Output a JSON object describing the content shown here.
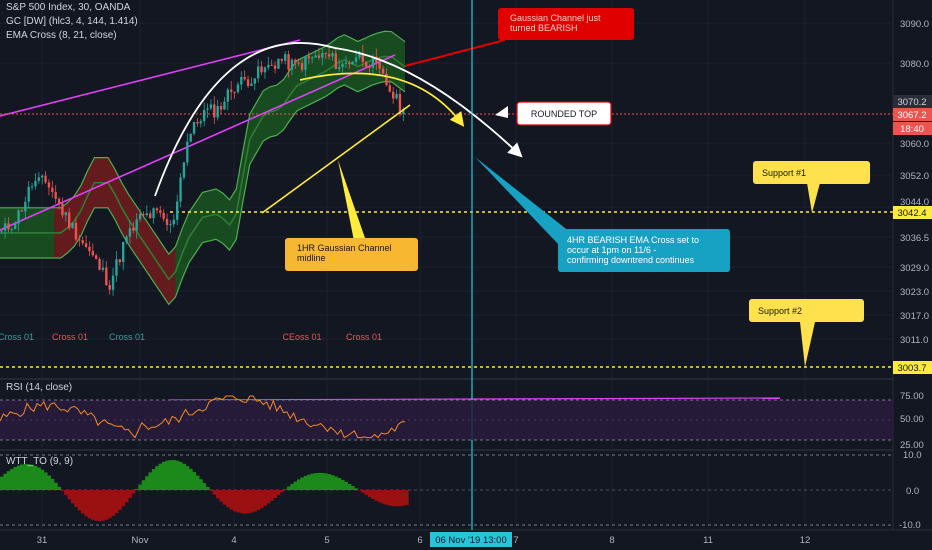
{
  "legend": {
    "main": "S&P 500 Index, 30, OANDA",
    "gc": "GC [DW] (hlc3, 4, 144, 1.414)",
    "ema": "EMA Cross (8, 21, close)",
    "rsi": "RSI (14, close)",
    "wtt": "WTT_TO (9, 9)"
  },
  "price_axis": [
    "3090.0",
    "3080.0",
    "3060.0",
    "3052.0",
    "3044.0",
    "3036.5",
    "3029.0",
    "3023.0",
    "3017.0",
    "3011.0"
  ],
  "price_tags": {
    "last": "3070.2",
    "current": "3067.2",
    "countdown": "18:40",
    "support1": "3042.4",
    "support2": "3003.7"
  },
  "rsi_axis": [
    "75.00",
    "50.00",
    "25.00"
  ],
  "wtt_axis": [
    "10.0",
    "0.0",
    "-10.0"
  ],
  "time_axis": [
    "31",
    "Nov",
    "4",
    "5",
    "6",
    "7",
    "8",
    "11",
    "12"
  ],
  "time_cursor": "06 Nov '19  13:00",
  "cross_labels": [
    "Cross 01",
    "Cross 01",
    "Cross 01",
    "CEoss 01",
    "Cross 01"
  ],
  "callouts": {
    "gaussian_bearish": "Gaussian Channel just turned BEARISH",
    "rounded_top": "ROUNDED TOP",
    "support1": "Support #1",
    "support2": "Support #2",
    "midline": "1HR Gaussian Channel midline",
    "ema_cross": "4HR BEARISH EMA Cross set to occur at 1pm on 11/6 - confirming downtrend continues"
  },
  "colors": {
    "background": "#131722",
    "bull": "#26a69a",
    "bear": "#ef5350",
    "channel_green": "#1b5e20",
    "channel_red": "#7f1d1d",
    "support_line": "#ffeb3b",
    "cursor": "#26c6da",
    "trendline": "#e040fb",
    "callout_red": "#e00000",
    "callout_yellow": "#ffe14d",
    "callout_orange": "#f7b731",
    "callout_cyan": "#17a2c4"
  },
  "chart_data": {
    "type": "candlestick",
    "symbol": "S&P 500 Index",
    "interval": "30",
    "source": "OANDA",
    "ylim": [
      3000,
      3095
    ],
    "close_path": [
      {
        "x": "Oct 30 14:00",
        "y": 3036
      },
      {
        "x": "Oct 30 18:00",
        "y": 3040
      },
      {
        "x": "Oct 30 22:00",
        "y": 3049
      },
      {
        "x": "Oct 31 02:00",
        "y": 3049
      },
      {
        "x": "Oct 31 06:00",
        "y": 3041
      },
      {
        "x": "Oct 31 10:00",
        "y": 3035
      },
      {
        "x": "Oct 31 14:00",
        "y": 3029
      },
      {
        "x": "Oct 31 18:00",
        "y": 3023
      },
      {
        "x": "Oct 31 22:00",
        "y": 3034
      },
      {
        "x": "Nov 1 02:00",
        "y": 3040
      },
      {
        "x": "Nov 1 06:00",
        "y": 3041
      },
      {
        "x": "Nov 1 10:00",
        "y": 3037
      },
      {
        "x": "Nov 1 14:00",
        "y": 3060
      },
      {
        "x": "Nov 1 18:00",
        "y": 3067
      },
      {
        "x": "Nov 1 22:00",
        "y": 3068
      },
      {
        "x": "Nov 4 02:00",
        "y": 3074
      },
      {
        "x": "Nov 4 06:00",
        "y": 3076
      },
      {
        "x": "Nov 4 10:00",
        "y": 3078
      },
      {
        "x": "Nov 4 14:00",
        "y": 3081
      },
      {
        "x": "Nov 4 18:00",
        "y": 3079
      },
      {
        "x": "Nov 4 22:00",
        "y": 3081
      },
      {
        "x": "Nov 5 02:00",
        "y": 3082
      },
      {
        "x": "Nov 5 06:00",
        "y": 3079
      },
      {
        "x": "Nov 5 10:00",
        "y": 3082
      },
      {
        "x": "Nov 5 14:00",
        "y": 3080
      },
      {
        "x": "Nov 5 18:00",
        "y": 3074
      },
      {
        "x": "Nov 5 22:00",
        "y": 3067
      }
    ],
    "support_levels": [
      3042.4,
      3003.7
    ],
    "rsi": {
      "ylim": [
        0,
        100
      ],
      "levels": [
        75,
        50,
        25
      ]
    },
    "wtt": {
      "ylim": [
        -12,
        12
      ],
      "levels": [
        10,
        0,
        -10
      ]
    }
  }
}
